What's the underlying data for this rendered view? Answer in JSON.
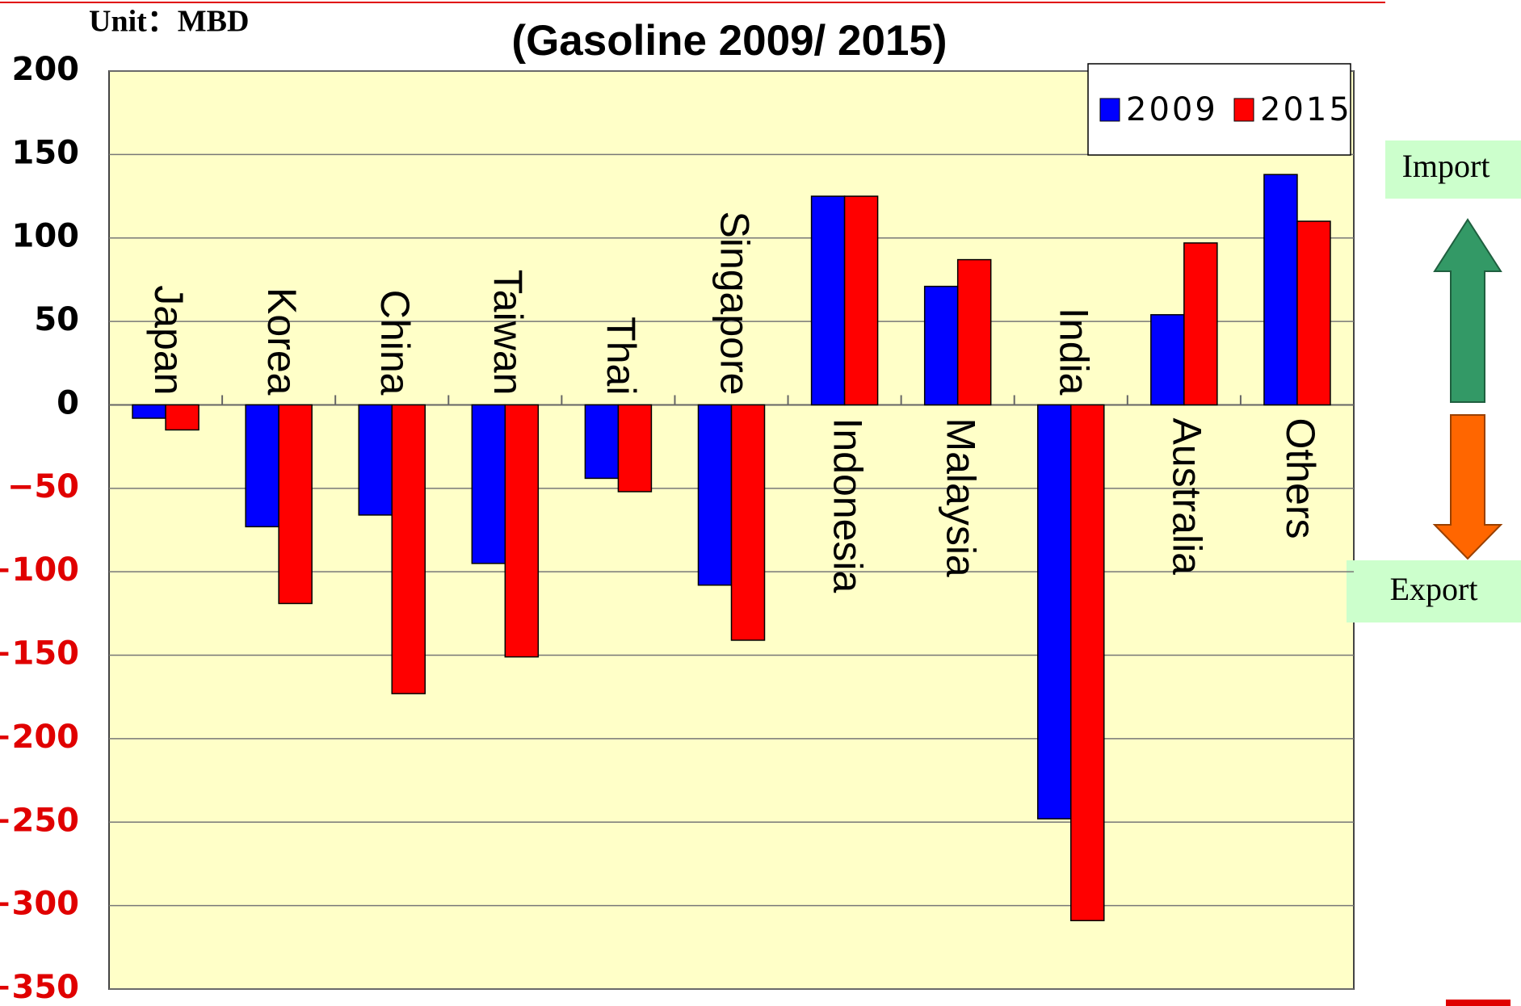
{
  "chart_data": {
    "type": "bar",
    "title": "(Gasoline 2009/ 2015)",
    "unit_label": "Unit：MBD",
    "annotations": [
      "Import",
      "Export"
    ],
    "categories": [
      "Japan",
      "Korea",
      "China",
      "Taiwan",
      "Thai",
      "Singapore",
      "Indonesia",
      "Malaysia",
      "India",
      "Australia",
      "Others"
    ],
    "series": [
      {
        "name": "2009",
        "color": "#0000ff",
        "values": [
          -8,
          -73,
          -66,
          -95,
          -44,
          -108,
          125,
          71,
          -248,
          54,
          138
        ]
      },
      {
        "name": "2015",
        "color": "#ff0000",
        "values": [
          -15,
          -119,
          -173,
          -151,
          -52,
          -141,
          125,
          87,
          -309,
          97,
          110
        ]
      }
    ],
    "ylim": [
      -350,
      200
    ],
    "yticks": [
      200,
      150,
      100,
      50,
      0,
      {
        "value": -50,
        "label": "−50"
      },
      {
        "value": -100,
        "label": "−100"
      },
      {
        "value": -150,
        "label": "−150"
      },
      {
        "value": -200,
        "label": "−200"
      },
      {
        "value": -250,
        "label": "−250"
      },
      {
        "value": -300,
        "label": "−300"
      },
      {
        "value": -350,
        "label": "−350"
      }
    ],
    "tick_color": "#000000",
    "negative_tick_color": "#e00000",
    "grid": true,
    "legend": "top-right",
    "plot_background": "#ffffc8"
  }
}
